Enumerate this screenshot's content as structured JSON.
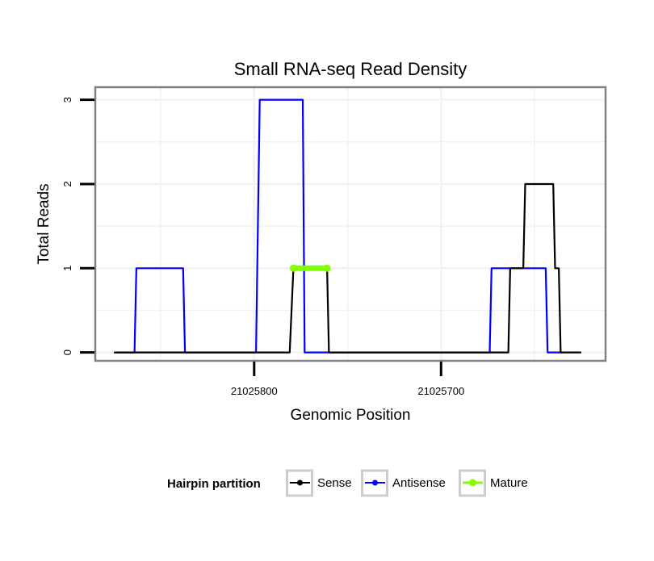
{
  "colors": {
    "sense": "#000000",
    "antisense": "#0000ff",
    "mature": "#7fff00",
    "panel_border": "#808080",
    "grid": "#f2f2f2",
    "legend_key_border": "#cccccc"
  },
  "chart_data": {
    "type": "line",
    "title": "Small RNA-seq Read Density",
    "xlabel": "Genomic Position",
    "ylabel": "Total Reads",
    "x_reversed": true,
    "xlim": [
      21025885,
      21025612
    ],
    "ylim": [
      -0.1,
      3.15
    ],
    "x_ticks": [
      {
        "value": 21025800,
        "label": "21025800"
      },
      {
        "value": 21025700,
        "label": "21025700"
      }
    ],
    "y_ticks": [
      {
        "value": 0,
        "label": "0"
      },
      {
        "value": 1,
        "label": "1"
      },
      {
        "value": 2,
        "label": "2"
      },
      {
        "value": 3,
        "label": "3"
      }
    ],
    "x_minor_ticks": [
      21025850,
      21025750,
      21025650
    ],
    "y_minor_ticks": [
      0.5,
      1.5,
      2.5
    ],
    "grid": true,
    "series": [
      {
        "name": "Sense",
        "color_key": "sense",
        "points": [
          [
            21025875,
            0
          ],
          [
            21025781,
            0
          ],
          [
            21025779,
            1
          ],
          [
            21025761,
            1
          ],
          [
            21025760,
            0
          ],
          [
            21025664,
            0
          ],
          [
            21025663,
            1
          ],
          [
            21025656,
            1
          ],
          [
            21025655,
            2
          ],
          [
            21025640,
            2
          ],
          [
            21025639,
            1
          ],
          [
            21025637,
            1
          ],
          [
            21025636,
            0
          ],
          [
            21025625,
            0
          ]
        ]
      },
      {
        "name": "Antisense",
        "color_key": "antisense",
        "points": [
          [
            21025875,
            0
          ],
          [
            21025864,
            0
          ],
          [
            21025863,
            1
          ],
          [
            21025838,
            1
          ],
          [
            21025837,
            0
          ],
          [
            21025799,
            0
          ],
          [
            21025797,
            3
          ],
          [
            21025774,
            3
          ],
          [
            21025773,
            0
          ],
          [
            21025674,
            0
          ],
          [
            21025673,
            1
          ],
          [
            21025659,
            1
          ],
          [
            21025658,
            1
          ],
          [
            21025644,
            1
          ],
          [
            21025643,
            0
          ],
          [
            21025635,
            0
          ]
        ]
      },
      {
        "name": "Mature",
        "color_key": "mature",
        "points": [
          [
            21025779,
            1
          ],
          [
            21025761,
            1
          ]
        ]
      }
    ],
    "legend": {
      "title": "Hairpin partition",
      "position": "bottom",
      "entries": [
        "Sense",
        "Antisense",
        "Mature"
      ]
    }
  }
}
